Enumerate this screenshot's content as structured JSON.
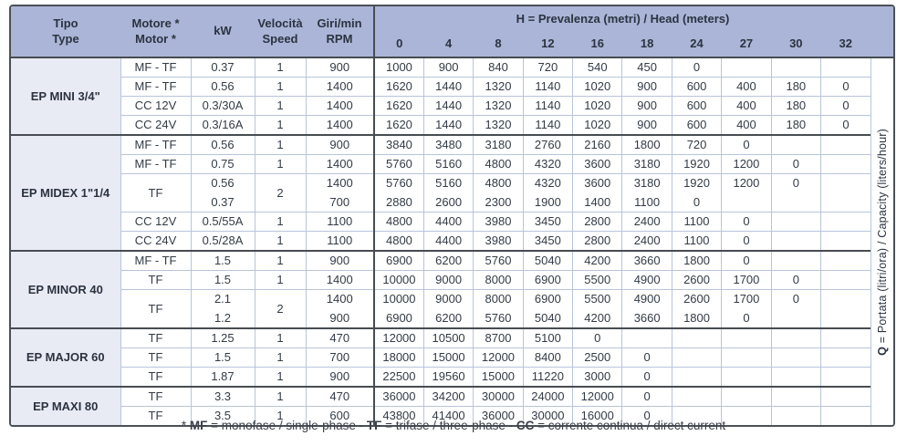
{
  "header": {
    "tipo": {
      "l1": "Tipo",
      "l2": "Type"
    },
    "motore": {
      "l1": "Motore *",
      "l2": "Motor *"
    },
    "kw": "kW",
    "velocita": {
      "l1": "Velocità",
      "l2": "Speed"
    },
    "giri": {
      "l1": "Giri/min",
      "l2": "RPM"
    },
    "h_bold": "H",
    "h_rest": " = Prevalenza (metri) / Head (meters)",
    "h_columns": [
      "0",
      "4",
      "8",
      "12",
      "16",
      "18",
      "24",
      "27",
      "30",
      "32"
    ]
  },
  "side_label": {
    "q": "Q",
    "rest": " = Portata (litri/ora) / Capacity (liters/hour)"
  },
  "footnote": {
    "star": "* ",
    "mf": "MF",
    "mf_rest": " = monofase / single-phase - ",
    "tf": "TF",
    "tf_rest": " = trifase / three-phase - ",
    "cc": "CC",
    "cc_rest": " = corrente continua / direct current"
  },
  "sections": [
    {
      "name": "EP MINI 3/4\"",
      "rows": [
        {
          "motor": "MF - TF",
          "kw": [
            "0.37"
          ],
          "speed": "1",
          "rpm": [
            "900"
          ],
          "values": [
            [
              "1000"
            ],
            [
              "900"
            ],
            [
              "840"
            ],
            [
              "720"
            ],
            [
              "540"
            ],
            [
              "450"
            ],
            [
              "0"
            ],
            [
              ""
            ],
            [
              ""
            ],
            [
              ""
            ]
          ]
        },
        {
          "motor": "MF - TF",
          "kw": [
            "0.56"
          ],
          "speed": "1",
          "rpm": [
            "1400"
          ],
          "values": [
            [
              "1620"
            ],
            [
              "1440"
            ],
            [
              "1320"
            ],
            [
              "1140"
            ],
            [
              "1020"
            ],
            [
              "900"
            ],
            [
              "600"
            ],
            [
              "400"
            ],
            [
              "180"
            ],
            [
              "0"
            ]
          ]
        },
        {
          "motor": "CC 12V",
          "kw": [
            "0.3/30A"
          ],
          "speed": "1",
          "rpm": [
            "1400"
          ],
          "values": [
            [
              "1620"
            ],
            [
              "1440"
            ],
            [
              "1320"
            ],
            [
              "1140"
            ],
            [
              "1020"
            ],
            [
              "900"
            ],
            [
              "600"
            ],
            [
              "400"
            ],
            [
              "180"
            ],
            [
              "0"
            ]
          ]
        },
        {
          "motor": "CC 24V",
          "kw": [
            "0.3/16A"
          ],
          "speed": "1",
          "rpm": [
            "1400"
          ],
          "values": [
            [
              "1620"
            ],
            [
              "1440"
            ],
            [
              "1320"
            ],
            [
              "1140"
            ],
            [
              "1020"
            ],
            [
              "900"
            ],
            [
              "600"
            ],
            [
              "400"
            ],
            [
              "180"
            ],
            [
              "0"
            ]
          ]
        }
      ]
    },
    {
      "name": "EP MIDEX 1\"1/4",
      "rows": [
        {
          "motor": "MF - TF",
          "kw": [
            "0.56"
          ],
          "speed": "1",
          "rpm": [
            "900"
          ],
          "values": [
            [
              "3840"
            ],
            [
              "3480"
            ],
            [
              "3180"
            ],
            [
              "2760"
            ],
            [
              "2160"
            ],
            [
              "1800"
            ],
            [
              "720"
            ],
            [
              "0"
            ],
            [
              ""
            ],
            [
              ""
            ]
          ]
        },
        {
          "motor": "MF - TF",
          "kw": [
            "0.75"
          ],
          "speed": "1",
          "rpm": [
            "1400"
          ],
          "values": [
            [
              "5760"
            ],
            [
              "5160"
            ],
            [
              "4800"
            ],
            [
              "4320"
            ],
            [
              "3600"
            ],
            [
              "3180"
            ],
            [
              "1920"
            ],
            [
              "1200"
            ],
            [
              "0"
            ],
            [
              ""
            ]
          ]
        },
        {
          "motor": "TF",
          "kw": [
            "0.56",
            "0.37"
          ],
          "speed": "2",
          "rpm": [
            "1400",
            "700"
          ],
          "values": [
            [
              "5760",
              "2880"
            ],
            [
              "5160",
              "2600"
            ],
            [
              "4800",
              "2300"
            ],
            [
              "4320",
              "1900"
            ],
            [
              "3600",
              "1400"
            ],
            [
              "3180",
              "1100"
            ],
            [
              "1920",
              "0"
            ],
            [
              "1200",
              ""
            ],
            [
              "0",
              ""
            ],
            [
              "",
              ""
            ]
          ]
        },
        {
          "motor": "CC 12V",
          "kw": [
            "0.5/55A"
          ],
          "speed": "1",
          "rpm": [
            "1100"
          ],
          "values": [
            [
              "4800"
            ],
            [
              "4400"
            ],
            [
              "3980"
            ],
            [
              "3450"
            ],
            [
              "2800"
            ],
            [
              "2400"
            ],
            [
              "1100"
            ],
            [
              "0"
            ],
            [
              ""
            ],
            [
              ""
            ]
          ]
        },
        {
          "motor": "CC 24V",
          "kw": [
            "0.5/28A"
          ],
          "speed": "1",
          "rpm": [
            "1100"
          ],
          "values": [
            [
              "4800"
            ],
            [
              "4400"
            ],
            [
              "3980"
            ],
            [
              "3450"
            ],
            [
              "2800"
            ],
            [
              "2400"
            ],
            [
              "1100"
            ],
            [
              "0"
            ],
            [
              ""
            ],
            [
              ""
            ]
          ]
        }
      ]
    },
    {
      "name": "EP MINOR 40",
      "rows": [
        {
          "motor": "MF - TF",
          "kw": [
            "1.5"
          ],
          "speed": "1",
          "rpm": [
            "900"
          ],
          "values": [
            [
              "6900"
            ],
            [
              "6200"
            ],
            [
              "5760"
            ],
            [
              "5040"
            ],
            [
              "4200"
            ],
            [
              "3660"
            ],
            [
              "1800"
            ],
            [
              "0"
            ],
            [
              ""
            ],
            [
              ""
            ]
          ]
        },
        {
          "motor": "TF",
          "kw": [
            "1.5"
          ],
          "speed": "1",
          "rpm": [
            "1400"
          ],
          "values": [
            [
              "10000"
            ],
            [
              "9000"
            ],
            [
              "8000"
            ],
            [
              "6900"
            ],
            [
              "5500"
            ],
            [
              "4900"
            ],
            [
              "2600"
            ],
            [
              "1700"
            ],
            [
              "0"
            ],
            [
              ""
            ]
          ]
        },
        {
          "motor": "TF",
          "kw": [
            "2.1",
            "1.2"
          ],
          "speed": "2",
          "rpm": [
            "1400",
            "900"
          ],
          "values": [
            [
              "10000",
              "6900"
            ],
            [
              "9000",
              "6200"
            ],
            [
              "8000",
              "5760"
            ],
            [
              "6900",
              "5040"
            ],
            [
              "5500",
              "4200"
            ],
            [
              "4900",
              "3660"
            ],
            [
              "2600",
              "1800"
            ],
            [
              "1700",
              "0"
            ],
            [
              "0",
              ""
            ],
            [
              "",
              ""
            ]
          ]
        }
      ]
    },
    {
      "name": "EP MAJOR 60",
      "rows": [
        {
          "motor": "TF",
          "kw": [
            "1.25"
          ],
          "speed": "1",
          "rpm": [
            "470"
          ],
          "values": [
            [
              "12000"
            ],
            [
              "10500"
            ],
            [
              "8700"
            ],
            [
              "5100"
            ],
            [
              "0"
            ],
            [
              ""
            ],
            [
              ""
            ],
            [
              ""
            ],
            [
              ""
            ],
            [
              ""
            ]
          ]
        },
        {
          "motor": "TF",
          "kw": [
            "1.5"
          ],
          "speed": "1",
          "rpm": [
            "700"
          ],
          "values": [
            [
              "18000"
            ],
            [
              "15000"
            ],
            [
              "12000"
            ],
            [
              "8400"
            ],
            [
              "2500"
            ],
            [
              "0"
            ],
            [
              ""
            ],
            [
              ""
            ],
            [
              ""
            ],
            [
              ""
            ]
          ]
        },
        {
          "motor": "TF",
          "kw": [
            "1.87"
          ],
          "speed": "1",
          "rpm": [
            "900"
          ],
          "values": [
            [
              "22500"
            ],
            [
              "19560"
            ],
            [
              "15000"
            ],
            [
              "11220"
            ],
            [
              "3000"
            ],
            [
              "0"
            ],
            [
              ""
            ],
            [
              ""
            ],
            [
              ""
            ],
            [
              ""
            ]
          ]
        }
      ]
    },
    {
      "name": "EP MAXI 80",
      "rows": [
        {
          "motor": "TF",
          "kw": [
            "3.3"
          ],
          "speed": "1",
          "rpm": [
            "470"
          ],
          "values": [
            [
              "36000"
            ],
            [
              "34200"
            ],
            [
              "30000"
            ],
            [
              "24000"
            ],
            [
              "12000"
            ],
            [
              "0"
            ],
            [
              ""
            ],
            [
              ""
            ],
            [
              ""
            ],
            [
              ""
            ]
          ]
        },
        {
          "motor": "TF",
          "kw": [
            "3.5"
          ],
          "speed": "1",
          "rpm": [
            "600"
          ],
          "values": [
            [
              "43800"
            ],
            [
              "41400"
            ],
            [
              "36000"
            ],
            [
              "30000"
            ],
            [
              "16000"
            ],
            [
              "0"
            ],
            [
              ""
            ],
            [
              ""
            ],
            [
              ""
            ],
            [
              ""
            ]
          ]
        }
      ]
    }
  ]
}
